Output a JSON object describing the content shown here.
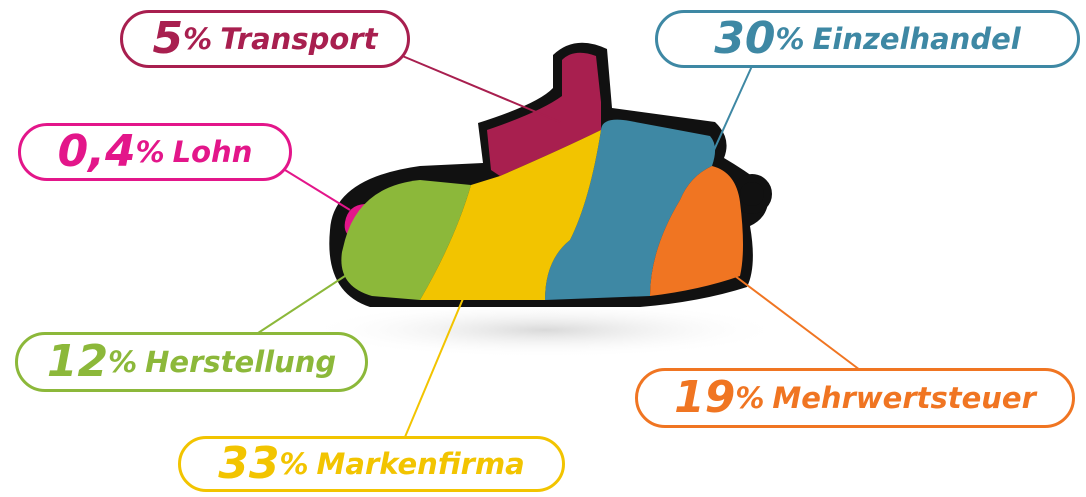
{
  "chart_data": {
    "type": "shoe",
    "unit": "%",
    "categories": [
      "Transport",
      "Einzelhandel",
      "Lohn",
      "Herstellung",
      "Markenfirma",
      "Mehrwertsteuer"
    ],
    "values": [
      5,
      30,
      0.4,
      12,
      33,
      19
    ],
    "value_labels": [
      "5",
      "30",
      "0,4",
      "12",
      "33",
      "19"
    ],
    "colors": [
      "#a81f4f",
      "#3e88a4",
      "#e3168a",
      "#8cb83a",
      "#f2c400",
      "#f07522"
    ]
  }
}
